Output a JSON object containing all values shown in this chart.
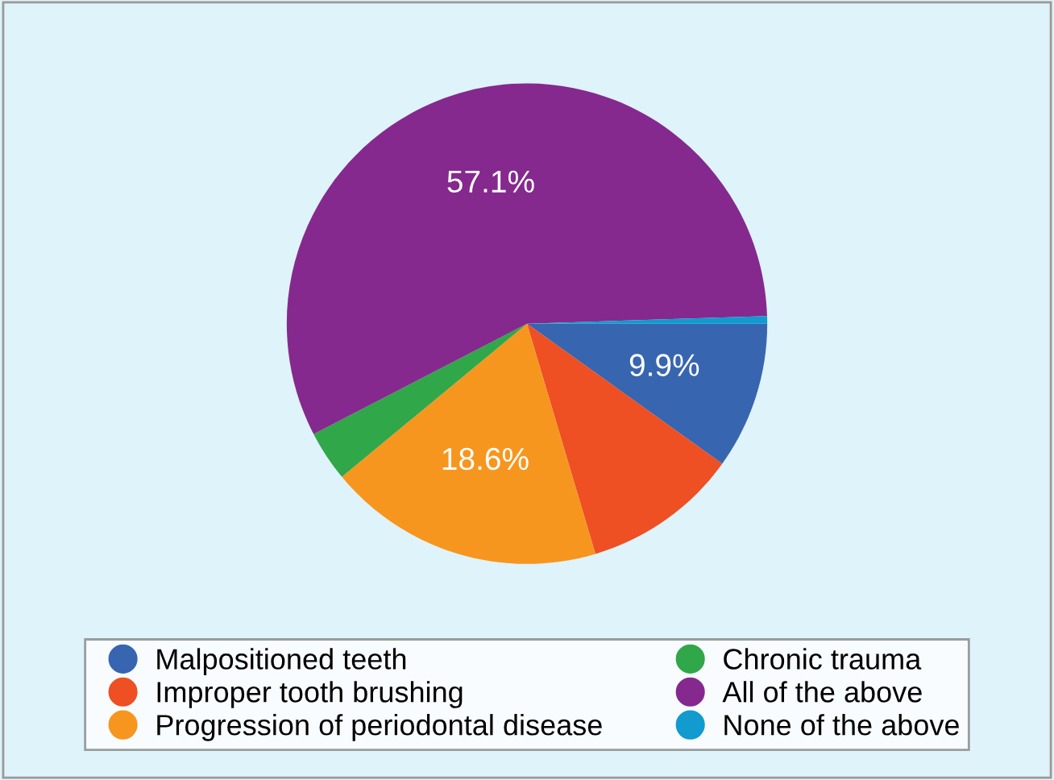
{
  "chart_data": {
    "type": "pie",
    "categories": [
      "Malpositioned teeth",
      "Improper tooth brushing",
      "Progression of periodontal disease",
      "Chronic trauma",
      "All of the above",
      "None of the above"
    ],
    "values": [
      9.9,
      10.5,
      18.6,
      3.4,
      57.1,
      0.5
    ],
    "colors": [
      "#3765b0",
      "#ee4f23",
      "#f7961e",
      "#30a748",
      "#85298e",
      "#119bce"
    ],
    "value_labels": [
      "9.9%",
      null,
      "18.6%",
      null,
      "57.1%",
      null
    ],
    "legend": "bottom"
  }
}
